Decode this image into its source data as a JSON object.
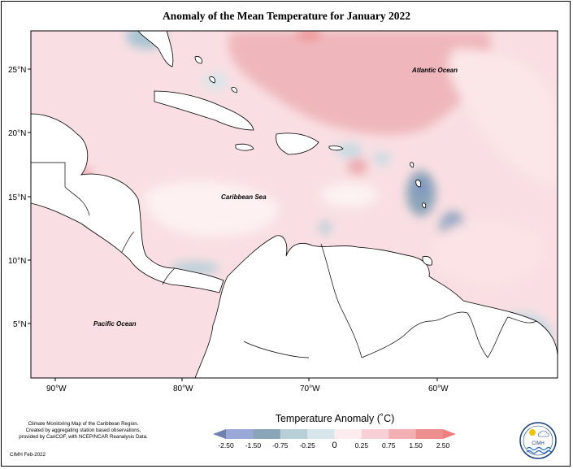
{
  "title": "Anomaly of the Mean Temperature for January 2022",
  "map": {
    "lat_labels": [
      {
        "label": "25°N",
        "y": 25
      },
      {
        "label": "20°N",
        "y": 20
      },
      {
        "label": "15°N",
        "y": 15
      },
      {
        "label": "10°N",
        "y": 10
      },
      {
        "label": "5°N",
        "y": 5
      }
    ],
    "lon_labels": [
      {
        "label": "90°W",
        "x": -90
      },
      {
        "label": "80°W",
        "x": -80
      },
      {
        "label": "70°W",
        "x": -70
      },
      {
        "label": "60°W",
        "x": -60
      }
    ],
    "oceans": [
      {
        "label": "Atlantic Ocean",
        "lon": -60,
        "lat": 24.5
      },
      {
        "label": "Caribbean Sea",
        "lon": -74,
        "lat": 15
      },
      {
        "label": "Pacific Ocean",
        "lon": -85,
        "lat": 5
      }
    ]
  },
  "legend": {
    "title": "Temperature Anomaly (˚C)",
    "ticks": [
      "-2.50",
      "-1.50",
      "-0.75",
      "-0.25",
      "0",
      "0.25",
      "0.75",
      "1.50",
      "2.50"
    ],
    "colors": [
      "#6f7fb0",
      "#9aa8d8",
      "#8aa4b8",
      "#b8cfd8",
      "#d6e6ea",
      "#fdecee",
      "#f8cfd4",
      "#f2b0b4",
      "#ee8f8f",
      "#ef7d7d"
    ]
  },
  "credits": {
    "line1": "Climate Monitoring Map of the Caribbean Region.",
    "line2": "Created by aggregating station based observations,",
    "line3": "provided by CariCOF, with NCEP/NCAR Reanalysis Data.",
    "date": "CIMH Feb-2022"
  },
  "logo": {
    "text": "CIMH"
  }
}
